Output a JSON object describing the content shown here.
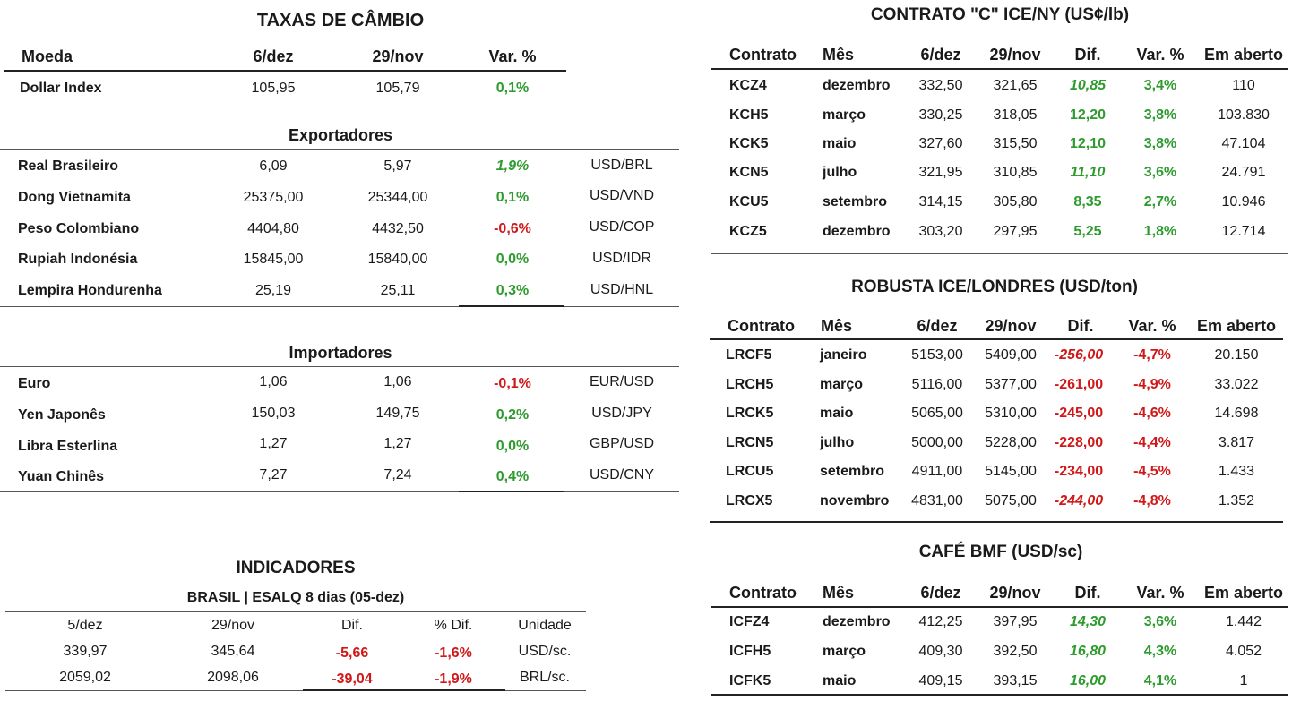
{
  "fx": {
    "title": "TAXAS DE CÂMBIO",
    "headers": [
      "Moeda",
      "6/dez",
      "29/nov",
      "Var. %"
    ],
    "dollar_index": [
      "Dollar Index",
      "105,95",
      "105,79",
      "0,1%"
    ],
    "exporters_title": "Exportadores",
    "exporters": [
      [
        "Real Brasileiro",
        "6,09",
        "5,97",
        "1,9%",
        "USD/BRL"
      ],
      [
        "Dong Vietnamita",
        "25375,00",
        "25344,00",
        "0,1%",
        "USD/VND"
      ],
      [
        "Peso Colombiano",
        "4404,80",
        "4432,50",
        "-0,6%",
        "USD/COP"
      ],
      [
        "Rupiah Indonésia",
        "15845,00",
        "15840,00",
        "0,0%",
        "USD/IDR"
      ],
      [
        "Lempira Hondurenha",
        "25,19",
        "25,11",
        "0,3%",
        "USD/HNL"
      ]
    ],
    "importers_title": "Importadores",
    "importers": [
      [
        "Euro",
        "1,06",
        "1,06",
        "-0,1%",
        "EUR/USD"
      ],
      [
        "Yen Japonês",
        "150,03",
        "149,75",
        "0,2%",
        "USD/JPY"
      ],
      [
        "Libra Esterlina",
        "1,27",
        "1,27",
        "0,0%",
        "GBP/USD"
      ],
      [
        "Yuan Chinês",
        "7,27",
        "7,24",
        "0,4%",
        "USD/CNY"
      ]
    ]
  },
  "indicadores": {
    "title": "INDICADORES",
    "subtitle": "BRASIL | ESALQ 8 dias (05-dez)",
    "headers": [
      "5/dez",
      "29/nov",
      "Dif.",
      "% Dif.",
      "Unidade"
    ],
    "rows": [
      [
        "339,97",
        "345,64",
        "-5,66",
        "-1,6%",
        "USD/sc."
      ],
      [
        "2059,02",
        "2098,06",
        "-39,04",
        "-1,9%",
        "BRL/sc."
      ]
    ]
  },
  "ice_ny": {
    "title": "CONTRATO \"C\" ICE/NY (US¢/lb)",
    "headers": [
      "Contrato",
      "Mês",
      "6/dez",
      "29/nov",
      "Dif.",
      "Var. %",
      "Em aberto"
    ],
    "rows": [
      [
        "KCZ4",
        "dezembro",
        "332,50",
        "321,65",
        "10,85",
        "3,4%",
        "110"
      ],
      [
        "KCH5",
        "março",
        "330,25",
        "318,05",
        "12,20",
        "3,8%",
        "103.830"
      ],
      [
        "KCK5",
        "maio",
        "327,60",
        "315,50",
        "12,10",
        "3,8%",
        "47.104"
      ],
      [
        "KCN5",
        "julho",
        "321,95",
        "310,85",
        "11,10",
        "3,6%",
        "24.791"
      ],
      [
        "KCU5",
        "setembro",
        "314,15",
        "305,80",
        "8,35",
        "2,7%",
        "10.946"
      ],
      [
        "KCZ5",
        "dezembro",
        "303,20",
        "297,95",
        "5,25",
        "1,8%",
        "12.714"
      ]
    ]
  },
  "robusta": {
    "title": "ROBUSTA ICE/LONDRES (USD/ton)",
    "headers": [
      "Contrato",
      "Mês",
      "6/dez",
      "29/nov",
      "Dif.",
      "Var. %",
      "Em aberto"
    ],
    "rows": [
      [
        "LRCF5",
        "janeiro",
        "5153,00",
        "5409,00",
        "-256,00",
        "-4,7%",
        "20.150"
      ],
      [
        "LRCH5",
        "março",
        "5116,00",
        "5377,00",
        "-261,00",
        "-4,9%",
        "33.022"
      ],
      [
        "LRCK5",
        "maio",
        "5065,00",
        "5310,00",
        "-245,00",
        "-4,6%",
        "14.698"
      ],
      [
        "LRCN5",
        "julho",
        "5000,00",
        "5228,00",
        "-228,00",
        "-4,4%",
        "3.817"
      ],
      [
        "LRCU5",
        "setembro",
        "4911,00",
        "5145,00",
        "-234,00",
        "-4,5%",
        "1.433"
      ],
      [
        "LRCX5",
        "novembro",
        "4831,00",
        "5075,00",
        "-244,00",
        "-4,8%",
        "1.352"
      ]
    ]
  },
  "bmf": {
    "title": "CAFÉ BMF (USD/sc)",
    "headers": [
      "Contrato",
      "Mês",
      "6/dez",
      "29/nov",
      "Dif.",
      "Var. %",
      "Em aberto"
    ],
    "rows": [
      [
        "ICFZ4",
        "dezembro",
        "412,25",
        "397,95",
        "14,30",
        "3,6%",
        "1.442"
      ],
      [
        "ICFH5",
        "março",
        "409,30",
        "392,50",
        "16,80",
        "4,3%",
        "4.052"
      ],
      [
        "ICFK5",
        "maio",
        "409,15",
        "393,15",
        "16,00",
        "4,1%",
        "1"
      ]
    ]
  },
  "colors": {
    "positive": "#2e9b2e",
    "negative": "#d01818"
  }
}
